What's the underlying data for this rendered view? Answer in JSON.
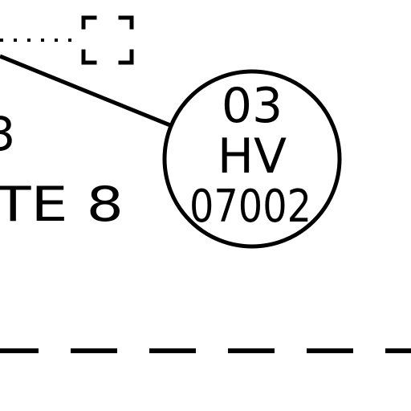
{
  "drawing": {
    "ink_color": "#000000",
    "background_color": "#ffffff",
    "left_labels": {
      "upper_fragment": "3",
      "lower_fragment": "TE 8"
    },
    "tag": {
      "line1": "03",
      "line2": "HV",
      "line3": "07002"
    }
  }
}
